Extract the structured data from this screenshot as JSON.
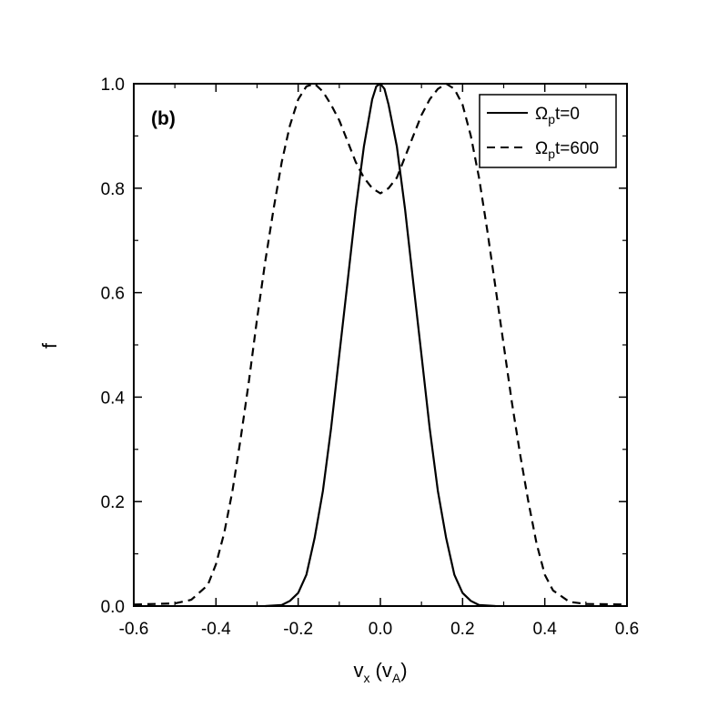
{
  "chart_data": {
    "type": "line",
    "panel_label": "(b)",
    "xlabel": {
      "main": "v",
      "sub": "x",
      "unit_open": " (v",
      "unit_sub": "A",
      "unit_close": ")"
    },
    "ylabel": "f",
    "xlim": [
      -0.6,
      0.6
    ],
    "ylim": [
      0.0,
      1.0
    ],
    "x_ticks": [
      -0.6,
      -0.4,
      -0.2,
      0.0,
      0.2,
      0.4,
      0.6
    ],
    "x_tick_labels": [
      "-0.6",
      "-0.4",
      "-0.2",
      "0.0",
      "0.2",
      "0.4",
      "0.6"
    ],
    "y_ticks": [
      0.0,
      0.2,
      0.4,
      0.6,
      0.8,
      1.0
    ],
    "y_tick_labels": [
      "0.0",
      "0.2",
      "0.4",
      "0.6",
      "0.8",
      "1.0"
    ],
    "grid": false,
    "legend_position": "top-right",
    "series": [
      {
        "legend": {
          "main": "Ω",
          "sub": "p",
          "rest": "t=0"
        },
        "style": "solid",
        "x": [
          -0.28,
          -0.24,
          -0.22,
          -0.2,
          -0.18,
          -0.16,
          -0.14,
          -0.12,
          -0.1,
          -0.08,
          -0.06,
          -0.04,
          -0.02,
          -0.01,
          0.0,
          0.01,
          0.02,
          0.04,
          0.06,
          0.08,
          0.1,
          0.12,
          0.14,
          0.16,
          0.18,
          0.2,
          0.22,
          0.24,
          0.28
        ],
        "y": [
          0.0,
          0.002,
          0.01,
          0.025,
          0.06,
          0.13,
          0.22,
          0.34,
          0.48,
          0.62,
          0.76,
          0.88,
          0.97,
          0.995,
          1.0,
          0.99,
          0.96,
          0.88,
          0.76,
          0.62,
          0.48,
          0.34,
          0.22,
          0.13,
          0.06,
          0.025,
          0.01,
          0.002,
          0.0
        ]
      },
      {
        "legend": {
          "main": "Ω",
          "sub": "p",
          "rest": "t=600"
        },
        "style": "dashed",
        "x": [
          -0.6,
          -0.5,
          -0.46,
          -0.42,
          -0.4,
          -0.38,
          -0.36,
          -0.34,
          -0.32,
          -0.3,
          -0.28,
          -0.26,
          -0.24,
          -0.22,
          -0.2,
          -0.18,
          -0.16,
          -0.14,
          -0.12,
          -0.1,
          -0.08,
          -0.06,
          -0.04,
          -0.02,
          0.0,
          0.02,
          0.04,
          0.06,
          0.08,
          0.1,
          0.12,
          0.14,
          0.16,
          0.18,
          0.2,
          0.22,
          0.24,
          0.26,
          0.28,
          0.3,
          0.32,
          0.34,
          0.36,
          0.38,
          0.4,
          0.42,
          0.46,
          0.5,
          0.6
        ],
        "y": [
          0.003,
          0.005,
          0.012,
          0.04,
          0.08,
          0.14,
          0.22,
          0.32,
          0.43,
          0.55,
          0.66,
          0.76,
          0.85,
          0.92,
          0.97,
          0.995,
          1.0,
          0.985,
          0.96,
          0.93,
          0.89,
          0.85,
          0.82,
          0.8,
          0.79,
          0.8,
          0.82,
          0.86,
          0.9,
          0.94,
          0.97,
          0.99,
          1.0,
          0.99,
          0.96,
          0.9,
          0.82,
          0.72,
          0.61,
          0.5,
          0.39,
          0.29,
          0.2,
          0.12,
          0.06,
          0.03,
          0.008,
          0.004,
          0.003
        ]
      }
    ]
  }
}
